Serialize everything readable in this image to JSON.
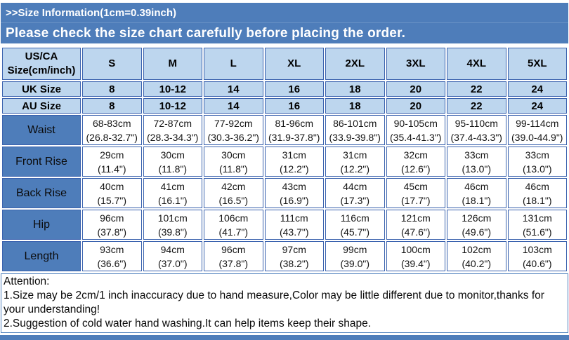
{
  "header": {
    "size_info": ">>Size Information(1cm=0.39inch)",
    "check_note": "Please check the size chart carefully before placing the order."
  },
  "table": {
    "corner_label": "US/CA Size(cm/inch)",
    "sizes": [
      "S",
      "M",
      "L",
      "XL",
      "2XL",
      "3XL",
      "4XL",
      "5XL"
    ],
    "region_rows": [
      {
        "label": "UK Size",
        "values": [
          "8",
          "10-12",
          "14",
          "16",
          "18",
          "20",
          "22",
          "24"
        ]
      },
      {
        "label": "AU Size",
        "values": [
          "8",
          "10-12",
          "14",
          "16",
          "18",
          "20",
          "22",
          "24"
        ]
      }
    ],
    "measure_rows": [
      {
        "label": "Waist",
        "values": [
          {
            "cm": "68-83cm",
            "inch": "(26.8-32.7\")"
          },
          {
            "cm": "72-87cm",
            "inch": "(28.3-34.3\")"
          },
          {
            "cm": "77-92cm",
            "inch": "(30.3-36.2\")"
          },
          {
            "cm": "81-96cm",
            "inch": "(31.9-37.8\")"
          },
          {
            "cm": "86-101cm",
            "inch": "(33.9-39.8\")"
          },
          {
            "cm": "90-105cm",
            "inch": "(35.4-41.3\")"
          },
          {
            "cm": "95-110cm",
            "inch": "(37.4-43.3\")"
          },
          {
            "cm": "99-114cm",
            "inch": "(39.0-44.9\")"
          }
        ]
      },
      {
        "label": "Front Rise",
        "values": [
          {
            "cm": "29cm",
            "inch": "(11.4\")"
          },
          {
            "cm": "30cm",
            "inch": "(11.8\")"
          },
          {
            "cm": "30cm",
            "inch": "(11.8\")"
          },
          {
            "cm": "31cm",
            "inch": "(12.2\")"
          },
          {
            "cm": "31cm",
            "inch": "(12.2\")"
          },
          {
            "cm": "32cm",
            "inch": "(12.6\")"
          },
          {
            "cm": "33cm",
            "inch": "(13.0\")"
          },
          {
            "cm": "33cm",
            "inch": "(13.0\")"
          }
        ]
      },
      {
        "label": "Back Rise",
        "values": [
          {
            "cm": "40cm",
            "inch": "(15.7\")"
          },
          {
            "cm": "41cm",
            "inch": "(16.1\")"
          },
          {
            "cm": "42cm",
            "inch": "(16.5\")"
          },
          {
            "cm": "43cm",
            "inch": "(16.9\")"
          },
          {
            "cm": "44cm",
            "inch": "(17.3\")"
          },
          {
            "cm": "45cm",
            "inch": "(17.7\")"
          },
          {
            "cm": "46cm",
            "inch": "(18.1\")"
          },
          {
            "cm": "46cm",
            "inch": "(18.1\")"
          }
        ]
      },
      {
        "label": "Hip",
        "values": [
          {
            "cm": "96cm",
            "inch": "(37.8\")"
          },
          {
            "cm": "101cm",
            "inch": "(39.8\")"
          },
          {
            "cm": "106cm",
            "inch": "(41.7\")"
          },
          {
            "cm": "111cm",
            "inch": "(43.7\")"
          },
          {
            "cm": "116cm",
            "inch": "(45.7\")"
          },
          {
            "cm": "121cm",
            "inch": "(47.6\")"
          },
          {
            "cm": "126cm",
            "inch": "(49.6\")"
          },
          {
            "cm": "131cm",
            "inch": "(51.6\")"
          }
        ]
      },
      {
        "label": "Length",
        "values": [
          {
            "cm": "93cm",
            "inch": "(36.6\")"
          },
          {
            "cm": "94cm",
            "inch": "(37.0\")"
          },
          {
            "cm": "96cm",
            "inch": "(37.8\")"
          },
          {
            "cm": "97cm",
            "inch": "(38.2\")"
          },
          {
            "cm": "99cm",
            "inch": "(39.0\")"
          },
          {
            "cm": "100cm",
            "inch": "(39.4\")"
          },
          {
            "cm": "102cm",
            "inch": "(40.2\")"
          },
          {
            "cm": "103cm",
            "inch": "(40.6\")"
          }
        ]
      }
    ]
  },
  "attention": {
    "title": "Attention:",
    "note1": "1.Size may be 2cm/1 inch inaccuracy due to hand measure,Color may be little different due to monitor,thanks for your understanding!",
    "note2": "2.Suggestion of cold water hand washing.It can help items keep their shape."
  },
  "colors": {
    "bar_blue": "#4e7dba",
    "header_light_blue": "#bdd6ee",
    "grid_border_blue": "#3a62ae",
    "attention_border_blue": "#4f81bd"
  }
}
